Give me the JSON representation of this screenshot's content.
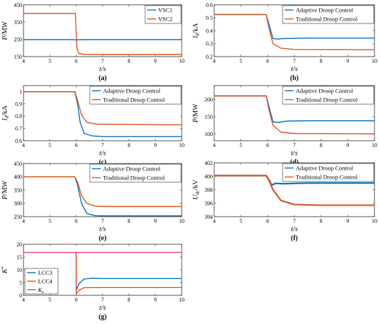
{
  "chart_data": [
    {
      "id": "a",
      "panel_label": "(a)",
      "type": "line",
      "ylabel": "P/MW",
      "ylabel_italic_part": "P",
      "ylabel_rest": "/MW",
      "xlabel": "t/s",
      "xlim": [
        4,
        10
      ],
      "ylim": [
        150,
        450
      ],
      "xticks": [
        "4",
        "5",
        "6",
        "7",
        "8",
        "9",
        "10"
      ],
      "yticks": [
        "150",
        "250",
        "350",
        "450"
      ],
      "yticks_values": [
        150,
        250,
        350,
        450
      ],
      "legend_position": "top-right",
      "series": [
        {
          "name": "VSC1",
          "color": "#0072BD",
          "points": [
            [
              4,
              248
            ],
            [
              5.9,
              248
            ],
            [
              6.0,
              247
            ],
            [
              6.2,
              248
            ],
            [
              10,
              248
            ]
          ]
        },
        {
          "name": "VSC2",
          "color": "#D95319",
          "points": [
            [
              4,
              400
            ],
            [
              5.9,
              400
            ],
            [
              5.97,
              400
            ],
            [
              6.02,
              200
            ],
            [
              6.1,
              168
            ],
            [
              6.3,
              163
            ],
            [
              7,
              162
            ],
            [
              10,
              162
            ]
          ]
        }
      ]
    },
    {
      "id": "b",
      "panel_label": "(b)",
      "type": "line",
      "ylabel": "Id/kA",
      "ylabel_italic_part": "I",
      "ylabel_sub": "d",
      "ylabel_rest": "/kA",
      "xlabel": "t/s",
      "xlim": [
        4,
        10
      ],
      "ylim": [
        0.2,
        0.6
      ],
      "xticks": [
        "4",
        "5",
        "6",
        "7",
        "8",
        "9",
        "10"
      ],
      "yticks": [
        "0.2",
        "0.3",
        "0.4",
        "0.5",
        "0.6"
      ],
      "yticks_values": [
        0.2,
        0.3,
        0.4,
        0.5,
        0.6
      ],
      "legend_position": "top-right",
      "series": [
        {
          "name": "Adaptive Droop Control",
          "color": "#0072BD",
          "points": [
            [
              4,
              0.525
            ],
            [
              5.95,
              0.525
            ],
            [
              6.05,
              0.45
            ],
            [
              6.2,
              0.34
            ],
            [
              6.4,
              0.335
            ],
            [
              6.6,
              0.34
            ],
            [
              7.5,
              0.343
            ],
            [
              10,
              0.343
            ]
          ]
        },
        {
          "name": "Traditional Droop Control",
          "color": "#D95319",
          "points": [
            [
              4,
              0.525
            ],
            [
              5.95,
              0.525
            ],
            [
              6.05,
              0.42
            ],
            [
              6.2,
              0.3
            ],
            [
              6.5,
              0.265
            ],
            [
              7,
              0.255
            ],
            [
              10,
              0.253
            ]
          ]
        }
      ]
    },
    {
      "id": "c",
      "panel_label": "(c)",
      "type": "line",
      "ylabel": "Id/kA",
      "ylabel_italic_part": "I",
      "ylabel_sub": "d",
      "ylabel_rest": "/kA",
      "xlabel": "t/s",
      "xlim": [
        4,
        10
      ],
      "ylim": [
        0.6,
        1.05
      ],
      "xticks": [
        "4",
        "5",
        "6",
        "7",
        "8",
        "9",
        "10"
      ],
      "yticks": [
        "0.6",
        "0.7",
        "0.8",
        "0.9",
        "1"
      ],
      "yticks_values": [
        0.6,
        0.7,
        0.8,
        0.9,
        1.0
      ],
      "legend_position": "top-right",
      "series": [
        {
          "name": "Adaptive Droop Control",
          "color": "#0072BD",
          "points": [
            [
              4,
              1.0
            ],
            [
              5.95,
              1.0
            ],
            [
              6.05,
              0.9
            ],
            [
              6.15,
              0.75
            ],
            [
              6.3,
              0.66
            ],
            [
              6.6,
              0.64
            ],
            [
              7,
              0.635
            ],
            [
              10,
              0.635
            ]
          ]
        },
        {
          "name": "Traditional Droop Control",
          "color": "#D95319",
          "points": [
            [
              4,
              1.0
            ],
            [
              5.95,
              1.0
            ],
            [
              6.05,
              0.93
            ],
            [
              6.2,
              0.81
            ],
            [
              6.4,
              0.75
            ],
            [
              6.8,
              0.735
            ],
            [
              10,
              0.73
            ]
          ]
        }
      ]
    },
    {
      "id": "d",
      "panel_label": "(d)",
      "type": "line",
      "ylabel": "P/MW",
      "ylabel_italic_part": "P",
      "ylabel_rest": "/MW",
      "xlabel": "t/s",
      "xlim": [
        4,
        10
      ],
      "ylim": [
        80,
        240
      ],
      "xticks": [
        "4",
        "5",
        "6",
        "7",
        "8",
        "9",
        "10"
      ],
      "yticks": [
        "100",
        "150",
        "200"
      ],
      "yticks_values": [
        100,
        150,
        200
      ],
      "legend_position": "top-right",
      "series": [
        {
          "name": "Adaptive Droop Control",
          "color": "#0072BD",
          "points": [
            [
              4,
              210
            ],
            [
              5.95,
              210
            ],
            [
              6.05,
              180
            ],
            [
              6.2,
              135
            ],
            [
              6.4,
              133
            ],
            [
              6.7,
              137
            ],
            [
              7.5,
              138
            ],
            [
              10,
              138
            ]
          ]
        },
        {
          "name": "Traditional Droop Control",
          "color": "#D95319",
          "points": [
            [
              4,
              210
            ],
            [
              5.95,
              210
            ],
            [
              6.05,
              170
            ],
            [
              6.2,
              125
            ],
            [
              6.5,
              105
            ],
            [
              7,
              101
            ],
            [
              10,
              100
            ]
          ]
        }
      ]
    },
    {
      "id": "e",
      "panel_label": "(e)",
      "type": "line",
      "ylabel": "P/MW",
      "ylabel_italic_part": "P",
      "ylabel_rest": "/MW",
      "xlabel": "t/s",
      "xlim": [
        4,
        10
      ],
      "ylim": [
        250,
        450
      ],
      "xticks": [
        "4",
        "5",
        "6",
        "7",
        "8",
        "9",
        "10"
      ],
      "yticks": [
        "250",
        "300",
        "350",
        "400",
        "450"
      ],
      "yticks_values": [
        250,
        300,
        350,
        400,
        450
      ],
      "legend_position": "top-right",
      "series": [
        {
          "name": "Adaptive Droop Control",
          "color": "#0072BD",
          "points": [
            [
              4,
              400
            ],
            [
              5.95,
              400
            ],
            [
              6.05,
              370
            ],
            [
              6.2,
              300
            ],
            [
              6.4,
              262
            ],
            [
              6.7,
              254
            ],
            [
              7,
              253
            ],
            [
              10,
              253
            ]
          ]
        },
        {
          "name": "Traditional Droop Control",
          "color": "#D95319",
          "points": [
            [
              4,
              400
            ],
            [
              5.95,
              400
            ],
            [
              6.05,
              380
            ],
            [
              6.2,
              330
            ],
            [
              6.4,
              300
            ],
            [
              6.7,
              290
            ],
            [
              7,
              288
            ],
            [
              10,
              288
            ]
          ]
        }
      ]
    },
    {
      "id": "f",
      "panel_label": "(f)",
      "type": "line",
      "ylabel": "Udc/kV",
      "ylabel_italic_part": "U",
      "ylabel_sub": "dc",
      "ylabel_rest": "/kV",
      "xlabel": "t/s",
      "xlim": [
        4,
        10
      ],
      "ylim": [
        394,
        402
      ],
      "xticks": [
        "4",
        "5",
        "6",
        "7",
        "8",
        "9",
        "10"
      ],
      "yticks": [
        "394",
        "396",
        "398",
        "400",
        "402"
      ],
      "yticks_values": [
        394,
        396,
        398,
        400,
        402
      ],
      "legend_position": "top-right",
      "series": [
        {
          "name": "Adaptive Droop Control",
          "color": "#0072BD",
          "width": 2.2,
          "points": [
            [
              4,
              400.1
            ],
            [
              5.95,
              400.1
            ],
            [
              6.05,
              399.5
            ],
            [
              6.15,
              398.7
            ],
            [
              6.3,
              398.95
            ],
            [
              6.6,
              398.9
            ],
            [
              7.5,
              399.0
            ],
            [
              10,
              399.0
            ]
          ]
        },
        {
          "name": "Traditional Droop Control",
          "color": "#D95319",
          "width": 2.2,
          "points": [
            [
              4,
              400.1
            ],
            [
              5.95,
              400.1
            ],
            [
              6.05,
              399.4
            ],
            [
              6.2,
              398.0
            ],
            [
              6.5,
              396.4
            ],
            [
              7,
              395.8
            ],
            [
              8,
              395.7
            ],
            [
              10,
              395.7
            ]
          ]
        }
      ]
    },
    {
      "id": "g",
      "panel_label": "(g)",
      "type": "line",
      "ylabel": "K*",
      "ylabel_italic_part": "K",
      "ylabel_sup": "*",
      "ylabel_rest": "",
      "xlabel": "t/s",
      "xlim": [
        4,
        10
      ],
      "ylim": [
        0,
        20
      ],
      "xticks": [
        "4",
        "5",
        "6",
        "7",
        "8",
        "9",
        "10"
      ],
      "yticks": [
        "0",
        "5",
        "10",
        "15",
        "20"
      ],
      "yticks_values": [
        0,
        5,
        10,
        15,
        20
      ],
      "legend_position": "bottom-left",
      "series": [
        {
          "name": "LCC3",
          "color": "#0072BD",
          "points": [
            [
              6.0,
              16.8
            ],
            [
              6.0,
              2.0
            ],
            [
              6.1,
              4.5
            ],
            [
              6.3,
              6.4
            ],
            [
              6.6,
              6.7
            ],
            [
              7,
              6.6
            ],
            [
              10,
              6.6
            ]
          ]
        },
        {
          "name": "LCC4",
          "color": "#D95319",
          "points": [
            [
              6.0,
              16.8
            ],
            [
              6.0,
              0.5
            ],
            [
              6.1,
              2.0
            ],
            [
              6.3,
              3.0
            ],
            [
              6.7,
              3.1
            ],
            [
              10,
              3.1
            ]
          ]
        },
        {
          "name": "Ks",
          "legend_main": "K",
          "legend_sub": "s",
          "color": "#E8358A",
          "points": [
            [
              4,
              16.8
            ],
            [
              10,
              16.8
            ]
          ]
        }
      ]
    }
  ]
}
